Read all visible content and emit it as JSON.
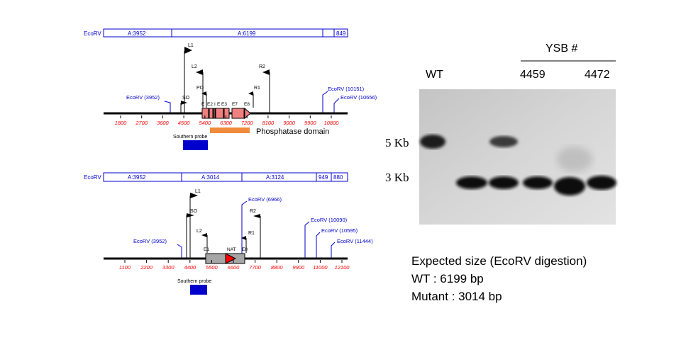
{
  "maps": [
    {
      "segments": [
        "EcoRV",
        "A:3952",
        "A:6199",
        "849"
      ],
      "ticks": [
        "1800",
        "2700",
        "3600",
        "4500",
        "5400",
        "6300",
        "7200",
        "8100",
        "9000",
        "9900",
        "10800"
      ],
      "sites": [
        "EcoRV (3952)",
        "EcoRV (10151)",
        "EcoRV (10656)"
      ],
      "primers": [
        "L1",
        "L2",
        "PO",
        "R2",
        "R1",
        "SO"
      ],
      "exons": [
        "E",
        "E2",
        "I",
        "E",
        "E3",
        "E7",
        "E8"
      ],
      "domain": "Phosphatase domain",
      "probe": "Southern probe"
    },
    {
      "segments": [
        "EcoRV",
        "A:3952",
        "A:3014",
        "A:3124",
        "949",
        "880"
      ],
      "ticks": [
        "1100",
        "2200",
        "3300",
        "4400",
        "5500",
        "6600",
        "7700",
        "8800",
        "9900",
        "11000",
        "12100"
      ],
      "sites": [
        "EcoRV (3952)",
        "EcoRV (6966)",
        "EcoRV (10090)",
        "EcoRV (10595)",
        "EcoRV (11444)"
      ],
      "primers": [
        "L1",
        "SO",
        "L2",
        "R2",
        "R1"
      ],
      "exons": [
        "E1",
        "NAT",
        "E8"
      ],
      "probe": "Southern probe"
    }
  ],
  "blot": {
    "header": "YSB #",
    "lanes": [
      "WT",
      "4459",
      "4472"
    ],
    "markers": [
      "5 Kb",
      "3 Kb"
    ]
  },
  "expected": {
    "title": "Expected size (EcoRV digestion)",
    "wt": "WT : 6199 bp",
    "mutant": "Mutant : 3014 bp"
  },
  "colors": {
    "map_blue": "#0000cc",
    "tick_red": "#ff0000",
    "exon_fill": "#f08080",
    "domain_orange": "#f0883a",
    "probe_blue": "#0000cc",
    "nat_gray": "#a6a6a6",
    "nat_arrow": "#ff0000"
  }
}
